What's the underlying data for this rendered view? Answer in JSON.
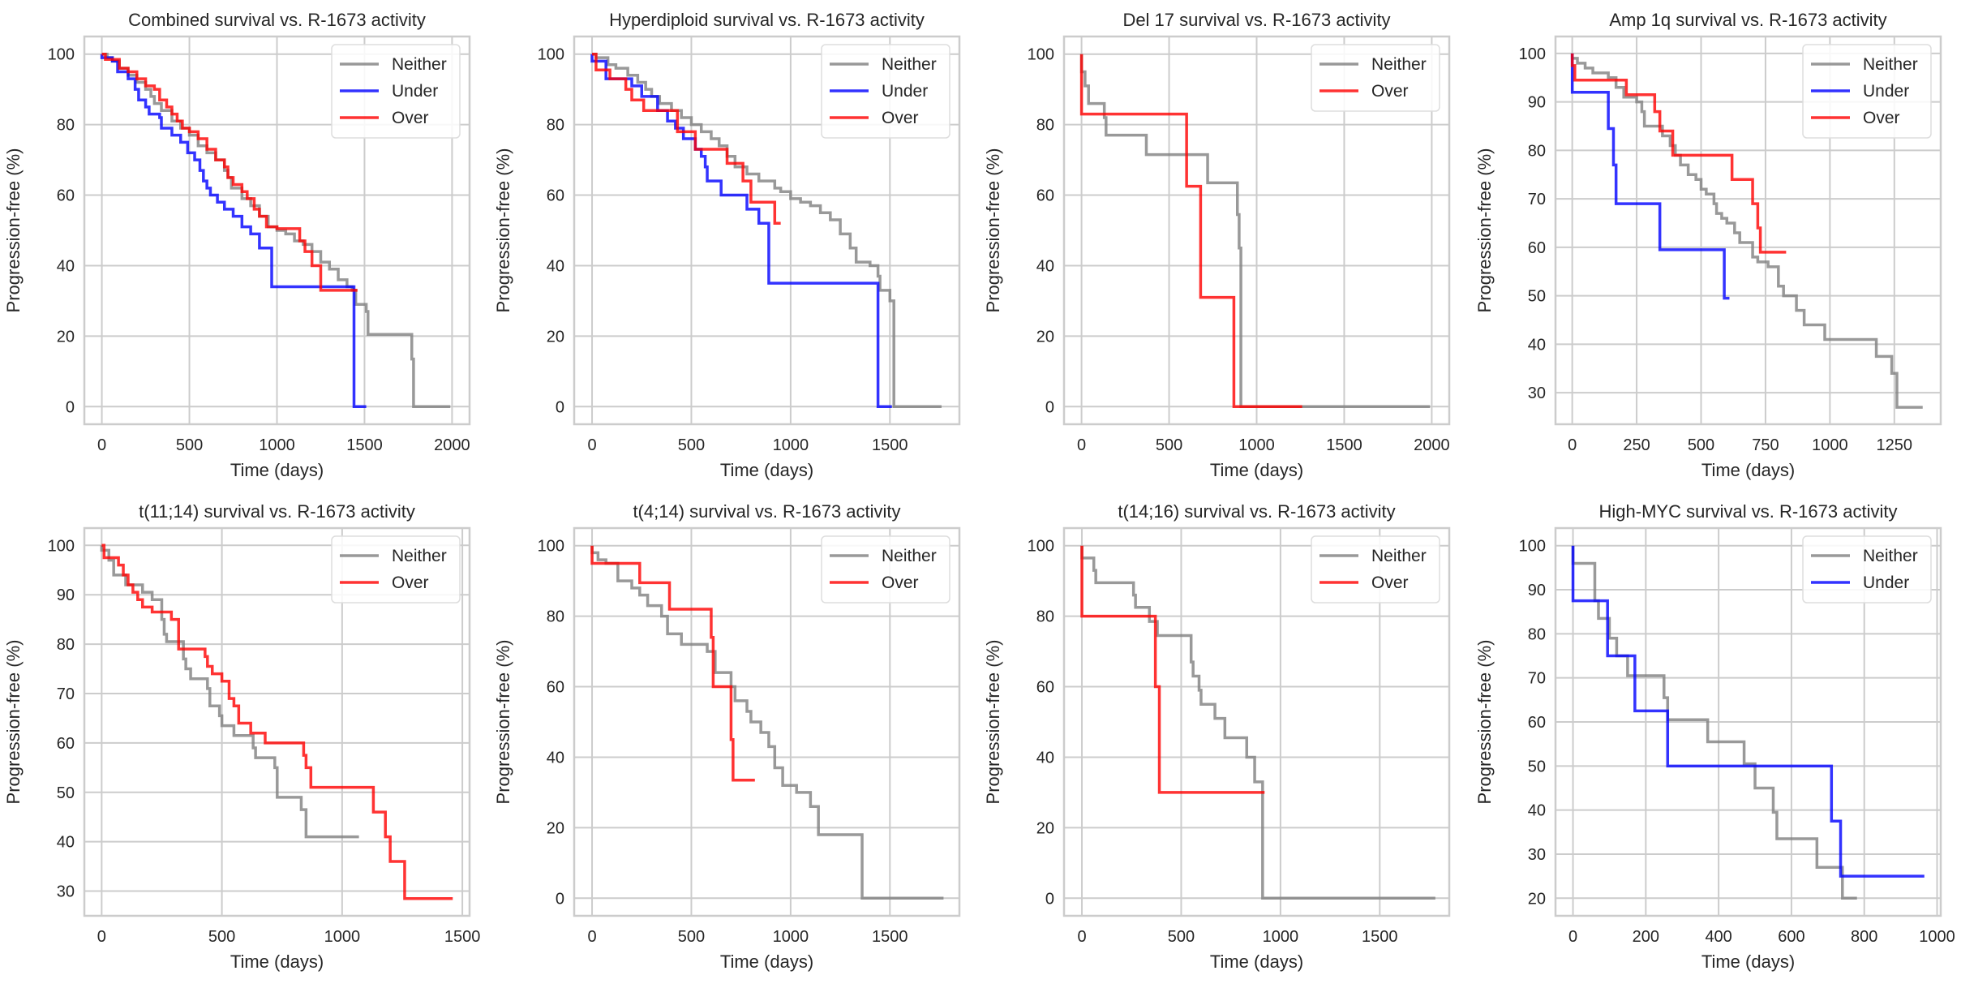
{
  "colors": {
    "Neither": "#808080",
    "Under": "#0000ff",
    "Over": "#ff0000"
  },
  "chart_data": [
    {
      "type": "line",
      "title": "Combined survival vs. R-1673 activity",
      "xlabel": "Time (days)",
      "ylabel": "Progression-free (%)",
      "xlim": [
        -100,
        2100
      ],
      "ylim": [
        -5,
        105
      ],
      "xticks": [
        0,
        500,
        1000,
        1500,
        2000
      ],
      "yticks": [
        0,
        20,
        40,
        60,
        80,
        100
      ],
      "grid": true,
      "legend": "top-right",
      "series": [
        {
          "name": "Neither",
          "step": true,
          "x": [
            0,
            30,
            60,
            100,
            150,
            200,
            250,
            280,
            300,
            340,
            400,
            450,
            500,
            550,
            600,
            650,
            700,
            720,
            740,
            800,
            850,
            900,
            950,
            1000,
            1050,
            1100,
            1150,
            1200,
            1250,
            1300,
            1350,
            1400,
            1430,
            1450,
            1510,
            1520,
            1770,
            1780,
            1990
          ],
          "y": [
            100,
            99,
            98,
            96,
            94,
            92,
            90,
            88,
            86,
            84,
            81,
            79,
            77,
            74,
            72,
            70,
            67,
            65,
            62,
            59,
            57,
            54,
            51,
            50,
            49,
            47,
            46,
            44,
            41,
            39,
            36,
            34,
            33,
            29,
            27,
            20.5,
            13.5,
            0,
            0
          ]
        },
        {
          "name": "Under",
          "step": true,
          "x": [
            0,
            60,
            90,
            150,
            190,
            210,
            250,
            270,
            330,
            340,
            400,
            450,
            490,
            530,
            560,
            580,
            600,
            620,
            660,
            700,
            750,
            800,
            850,
            900,
            970,
            1430,
            1440,
            1510
          ],
          "y": [
            99,
            98,
            95,
            93,
            90,
            87,
            85,
            83,
            82,
            79,
            77,
            75,
            72,
            70,
            67,
            64,
            62,
            60,
            58,
            56,
            54,
            51,
            49,
            45,
            34,
            34,
            0,
            0
          ]
        },
        {
          "name": "Over",
          "step": true,
          "x": [
            0,
            20,
            100,
            150,
            200,
            250,
            300,
            330,
            370,
            400,
            430,
            460,
            500,
            550,
            600,
            650,
            700,
            720,
            750,
            800,
            830,
            870,
            900,
            940,
            1000,
            1050,
            1130,
            1160,
            1200,
            1250,
            1460
          ],
          "y": [
            100,
            98.5,
            96,
            95,
            93,
            91,
            90,
            87,
            85,
            83,
            81,
            79,
            78,
            76,
            73,
            70,
            68,
            65,
            63,
            61,
            59,
            56,
            54,
            51,
            50.5,
            50.5,
            47,
            44,
            40,
            33,
            33
          ]
        }
      ]
    },
    {
      "type": "line",
      "title": "Hyperdiploid survival vs. R-1673 activity",
      "xlabel": "Time (days)",
      "ylabel": "Progression-free (%)",
      "xlim": [
        -90,
        1850
      ],
      "ylim": [
        -5,
        105
      ],
      "xticks": [
        0,
        500,
        1000,
        1500
      ],
      "yticks": [
        0,
        20,
        40,
        60,
        80,
        100
      ],
      "grid": true,
      "legend": "top-right",
      "series": [
        {
          "name": "Neither",
          "step": true,
          "x": [
            0,
            20,
            80,
            120,
            180,
            230,
            270,
            300,
            340,
            400,
            450,
            500,
            550,
            600,
            640,
            680,
            720,
            780,
            840,
            920,
            950,
            1000,
            1050,
            1100,
            1150,
            1200,
            1250,
            1300,
            1330,
            1400,
            1440,
            1450,
            1500,
            1520,
            1760
          ],
          "y": [
            100,
            99,
            97,
            96,
            94,
            92,
            90,
            88,
            86,
            84,
            82,
            80,
            78,
            76,
            74,
            71,
            68,
            66,
            64,
            62,
            61,
            59,
            58,
            57,
            55,
            53,
            49,
            45,
            41,
            40,
            37,
            33,
            30,
            0,
            0
          ]
        },
        {
          "name": "Under",
          "step": true,
          "x": [
            0,
            70,
            200,
            250,
            330,
            380,
            420,
            460,
            520,
            550,
            570,
            580,
            650,
            780,
            840,
            890,
            1430,
            1440,
            1510
          ],
          "y": [
            98,
            93,
            91,
            88,
            84,
            81,
            79,
            76,
            73,
            71,
            68,
            64,
            60,
            56,
            52,
            35,
            35,
            0,
            0
          ]
        },
        {
          "name": "Over",
          "step": true,
          "x": [
            0,
            20,
            90,
            170,
            200,
            260,
            410,
            430,
            500,
            520,
            680,
            760,
            800,
            920,
            950
          ],
          "y": [
            100,
            95.5,
            93,
            90,
            87,
            84,
            84,
            78,
            78,
            73,
            69,
            64,
            58,
            52,
            52
          ]
        }
      ]
    },
    {
      "type": "line",
      "title": "Del 17 survival vs. R-1673 activity",
      "xlabel": "Time (days)",
      "ylabel": "Progression-free (%)",
      "xlim": [
        -100,
        2100
      ],
      "ylim": [
        -5,
        105
      ],
      "xticks": [
        0,
        500,
        1000,
        1500,
        2000
      ],
      "yticks": [
        0,
        20,
        40,
        60,
        80,
        100
      ],
      "grid": true,
      "legend": "top-right",
      "series": [
        {
          "name": "Neither",
          "step": true,
          "x": [
            0,
            20,
            40,
            130,
            140,
            370,
            720,
            890,
            900,
            910,
            1990
          ],
          "y": [
            95,
            91,
            86,
            82,
            77,
            71.5,
            63.5,
            54.5,
            45,
            0,
            0
          ]
        },
        {
          "name": "Over",
          "step": true,
          "x": [
            0,
            600,
            680,
            870,
            1260
          ],
          "y": [
            83,
            62.5,
            31,
            0,
            0
          ]
        }
      ]
    },
    {
      "type": "line",
      "title": "Amp 1q survival vs. R-1673 activity",
      "xlabel": "Time (days)",
      "ylabel": "Progression-free (%)",
      "xlim": [
        -65,
        1430
      ],
      "ylim": [
        23.5,
        103.5
      ],
      "xticks": [
        0,
        250,
        500,
        750,
        1000,
        1250
      ],
      "yticks": [
        30,
        40,
        50,
        60,
        70,
        80,
        90,
        100
      ],
      "grid": true,
      "legend": "top-right",
      "series": [
        {
          "name": "Neither",
          "step": true,
          "x": [
            0,
            20,
            50,
            80,
            140,
            170,
            200,
            250,
            270,
            280,
            350,
            380,
            400,
            420,
            450,
            480,
            500,
            520,
            550,
            560,
            580,
            600,
            630,
            650,
            700,
            720,
            760,
            800,
            820,
            870,
            900,
            980,
            1180,
            1240,
            1260,
            1360
          ],
          "y": [
            99,
            98,
            97,
            96,
            95,
            93,
            91,
            90,
            88,
            85,
            83,
            81,
            79,
            77,
            75,
            74,
            72,
            71,
            69,
            67,
            66,
            65,
            63,
            61,
            58,
            57,
            56,
            52,
            50,
            47,
            44,
            41,
            37.5,
            34,
            27,
            27
          ]
        },
        {
          "name": "Under",
          "step": true,
          "x": [
            0,
            140,
            160,
            170,
            340,
            590,
            610
          ],
          "y": [
            92,
            84.5,
            77,
            69,
            59.5,
            49.5,
            49.5
          ]
        },
        {
          "name": "Over",
          "step": true,
          "x": [
            0,
            10,
            210,
            320,
            340,
            390,
            620,
            700,
            720,
            730,
            830
          ],
          "y": [
            97.5,
            94.5,
            91.5,
            88,
            84,
            79,
            74,
            69,
            64,
            59,
            59
          ]
        }
      ]
    },
    {
      "type": "line",
      "title": "t(11;14) survival vs. R-1673 activity",
      "xlabel": "Time (days)",
      "ylabel": "Progression-free (%)",
      "xlim": [
        -72,
        1530
      ],
      "ylim": [
        25,
        103.5
      ],
      "xticks": [
        0,
        500,
        1000,
        1500
      ],
      "yticks": [
        30,
        40,
        50,
        60,
        70,
        80,
        90,
        100
      ],
      "grid": true,
      "legend": "top-right",
      "series": [
        {
          "name": "Neither",
          "step": true,
          "x": [
            0,
            30,
            50,
            100,
            170,
            210,
            250,
            260,
            270,
            340,
            350,
            370,
            440,
            450,
            490,
            500,
            550,
            630,
            640,
            720,
            730,
            830,
            850,
            1070
          ],
          "y": [
            99,
            97,
            94,
            92,
            90.5,
            89,
            85,
            82,
            80.5,
            77,
            75,
            73,
            71,
            67.5,
            65.5,
            63.5,
            61.5,
            59,
            57,
            55,
            49,
            46.5,
            41,
            41
          ]
        },
        {
          "name": "Over",
          "step": true,
          "x": [
            0,
            10,
            70,
            90,
            110,
            130,
            150,
            170,
            210,
            290,
            320,
            430,
            440,
            460,
            500,
            530,
            550,
            570,
            620,
            680,
            840,
            850,
            870,
            1130,
            1180,
            1200,
            1260,
            1460
          ],
          "y": [
            100,
            97.5,
            96,
            94,
            92,
            90.5,
            89,
            87.5,
            86.5,
            85,
            79,
            77.5,
            75.5,
            74,
            72.5,
            69,
            67.5,
            64,
            62,
            60,
            57.5,
            55,
            51,
            46,
            41,
            36,
            28.5,
            28.5
          ]
        }
      ]
    },
    {
      "type": "line",
      "title": "t(4;14) survival vs. R-1673 activity",
      "xlabel": "Time (days)",
      "ylabel": "Progression-free (%)",
      "xlim": [
        -90,
        1850
      ],
      "ylim": [
        -5,
        105
      ],
      "xticks": [
        0,
        500,
        1000,
        1500
      ],
      "yticks": [
        0,
        20,
        40,
        60,
        80,
        100
      ],
      "grid": true,
      "legend": "top-right",
      "series": [
        {
          "name": "Neither",
          "step": true,
          "x": [
            0,
            30,
            70,
            130,
            200,
            240,
            280,
            350,
            380,
            450,
            580,
            620,
            700,
            720,
            780,
            800,
            850,
            890,
            920,
            960,
            1030,
            1100,
            1140,
            1360,
            1770
          ],
          "y": [
            98,
            96,
            95,
            90,
            88,
            86,
            83,
            80,
            75,
            72,
            70,
            64,
            60,
            56,
            53,
            50,
            47,
            43,
            37,
            32,
            30,
            26,
            18,
            0,
            0
          ]
        },
        {
          "name": "Over",
          "step": true,
          "x": [
            0,
            240,
            390,
            600,
            610,
            700,
            710,
            820
          ],
          "y": [
            95,
            89.5,
            82,
            74,
            60,
            45,
            33.5,
            33.5
          ]
        }
      ]
    },
    {
      "type": "line",
      "title": "t(14;16) survival vs. R-1673 activity",
      "xlabel": "Time (days)",
      "ylabel": "Progression-free (%)",
      "xlim": [
        -90,
        1850
      ],
      "ylim": [
        -5,
        105
      ],
      "xticks": [
        0,
        500,
        1000,
        1500
      ],
      "yticks": [
        0,
        20,
        40,
        60,
        80,
        100
      ],
      "grid": true,
      "legend": "top-right",
      "series": [
        {
          "name": "Neither",
          "step": true,
          "x": [
            0,
            60,
            70,
            260,
            270,
            340,
            380,
            550,
            560,
            590,
            600,
            670,
            720,
            830,
            870,
            910,
            1780
          ],
          "y": [
            96.5,
            93,
            89.5,
            86,
            82.5,
            78.5,
            74.5,
            67,
            63,
            59,
            55,
            51,
            45.5,
            40,
            33,
            0,
            0
          ]
        },
        {
          "name": "Over",
          "step": true,
          "x": [
            0,
            370,
            390,
            920
          ],
          "y": [
            80,
            60,
            30,
            30
          ]
        }
      ]
    },
    {
      "type": "line",
      "title": "High-MYC survival vs. R-1673 activity",
      "xlabel": "Time (days)",
      "ylabel": "Progression-free (%)",
      "xlim": [
        -48,
        1010
      ],
      "ylim": [
        16,
        104
      ],
      "xticks": [
        0,
        200,
        400,
        600,
        800,
        1000
      ],
      "yticks": [
        20,
        30,
        40,
        50,
        60,
        70,
        80,
        90,
        100
      ],
      "grid": true,
      "legend": "top-right",
      "series": [
        {
          "name": "Neither",
          "step": true,
          "x": [
            0,
            60,
            70,
            100,
            120,
            150,
            250,
            260,
            370,
            470,
            500,
            550,
            560,
            670,
            740,
            780
          ],
          "y": [
            96,
            87.5,
            83.5,
            79,
            75,
            70.5,
            65.5,
            60.5,
            55.5,
            50.5,
            45,
            39.5,
            33.5,
            27,
            20,
            20
          ]
        },
        {
          "name": "Under",
          "step": true,
          "x": [
            0,
            95,
            170,
            260,
            710,
            735,
            965
          ],
          "y": [
            87.5,
            75,
            62.5,
            50,
            37.5,
            25,
            25
          ]
        }
      ]
    }
  ]
}
